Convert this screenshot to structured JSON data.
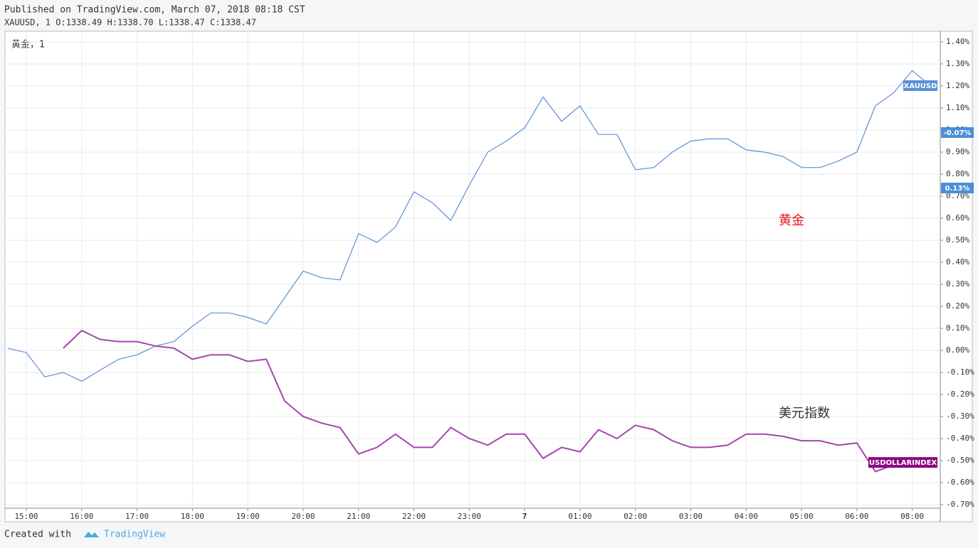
{
  "header": {
    "published": "Published on TradingView.com, March 07, 2018 08:18 CST",
    "ohlc": "XAUUSD, 1 O:1338.49 H:1338.70 L:1338.47 C:1338.47"
  },
  "footer": {
    "created": "Created with",
    "brand": "TradingView"
  },
  "chart_data": {
    "type": "line",
    "legend_label": "黄金，1",
    "categories": [
      null,
      "15:00",
      null,
      null,
      "16:00",
      null,
      null,
      "17:00",
      null,
      null,
      "18:00",
      null,
      null,
      "19:00",
      null,
      null,
      "20:00",
      null,
      null,
      "21:00",
      null,
      null,
      "22:00",
      null,
      null,
      "23:00",
      null,
      null,
      "7",
      null,
      null,
      "01:00",
      null,
      null,
      "02:00",
      null,
      null,
      "03:00",
      null,
      null,
      "04:00",
      null,
      null,
      "05:00",
      null,
      null,
      "06:00",
      null,
      null,
      "08:00",
      null
    ],
    "series": [
      {
        "name": "XAUUSD",
        "color": "#5b8fd6",
        "values": [
          0.01,
          -0.01,
          -0.12,
          -0.1,
          -0.14,
          -0.09,
          -0.04,
          -0.02,
          0.02,
          0.04,
          0.11,
          0.17,
          0.17,
          0.15,
          0.12,
          0.24,
          0.36,
          0.33,
          0.32,
          0.53,
          0.49,
          0.56,
          0.72,
          0.67,
          0.59,
          0.75,
          0.9,
          0.95,
          1.01,
          1.15,
          1.04,
          1.11,
          0.98,
          0.98,
          0.82,
          0.83,
          0.9,
          0.95,
          0.96,
          0.96,
          0.91,
          0.9,
          0.88,
          0.83,
          0.83,
          0.86,
          0.9,
          1.11,
          1.17,
          1.27,
          1.2
        ]
      },
      {
        "name": "USDOLLARINDEX",
        "color": "#a446ad",
        "tag_color": "#8a0a80",
        "values": [
          null,
          null,
          null,
          0.01,
          0.09,
          0.05,
          0.04,
          0.04,
          0.02,
          0.01,
          -0.04,
          -0.02,
          -0.02,
          -0.05,
          -0.04,
          -0.23,
          -0.3,
          -0.33,
          -0.35,
          -0.47,
          -0.44,
          -0.38,
          -0.44,
          -0.44,
          -0.35,
          -0.4,
          -0.43,
          -0.38,
          -0.38,
          -0.49,
          -0.44,
          -0.46,
          -0.36,
          -0.4,
          -0.34,
          -0.36,
          -0.41,
          -0.44,
          -0.44,
          -0.43,
          -0.38,
          -0.38,
          -0.39,
          -0.41,
          -0.41,
          -0.43,
          -0.42,
          -0.55,
          -0.52,
          -0.51,
          null
        ]
      }
    ],
    "ylim": [
      -0.716,
      1.445
    ],
    "yticks": [
      {
        "value": -0.7,
        "label": "-0.70%"
      },
      {
        "value": -0.6,
        "label": "-0.60%"
      },
      {
        "value": -0.5,
        "label": "-0.50%"
      },
      {
        "value": -0.4,
        "label": "-0.40%"
      },
      {
        "value": -0.3,
        "label": "-0.30%"
      },
      {
        "value": -0.2,
        "label": "-0.20%"
      },
      {
        "value": -0.1,
        "label": "-0.10%"
      },
      {
        "value": 0,
        "label": "0.00%"
      },
      {
        "value": 0.1,
        "label": "0.10%"
      },
      {
        "value": 0.2,
        "label": "0.20%"
      },
      {
        "value": 0.3,
        "label": "0.30%"
      },
      {
        "value": 0.4,
        "label": "0.40%"
      },
      {
        "value": 0.5,
        "label": "0.50%"
      },
      {
        "value": 0.6,
        "label": "0.60%"
      },
      {
        "value": 0.7,
        "label": "0.70%"
      },
      {
        "value": 0.8,
        "label": "0.80%"
      },
      {
        "value": 0.9,
        "label": "0.90%"
      },
      {
        "value": 1.0,
        "label": "1.00%"
      },
      {
        "value": 1.1,
        "label": "1.10%"
      },
      {
        "value": 1.2,
        "label": "1.20%"
      },
      {
        "value": 1.3,
        "label": "1.30%"
      },
      {
        "value": 1.4,
        "label": "1.40%"
      }
    ],
    "grid": true,
    "axis_notes": [
      {
        "text": "-0.07%",
        "color": "#4a8fd6"
      },
      {
        "text": "0.13%",
        "color": "#4a8fd6"
      }
    ],
    "annotations": [
      {
        "text": "黄金",
        "color": "#e8141c"
      },
      {
        "text": "美元指数",
        "color": "#333333"
      }
    ]
  }
}
